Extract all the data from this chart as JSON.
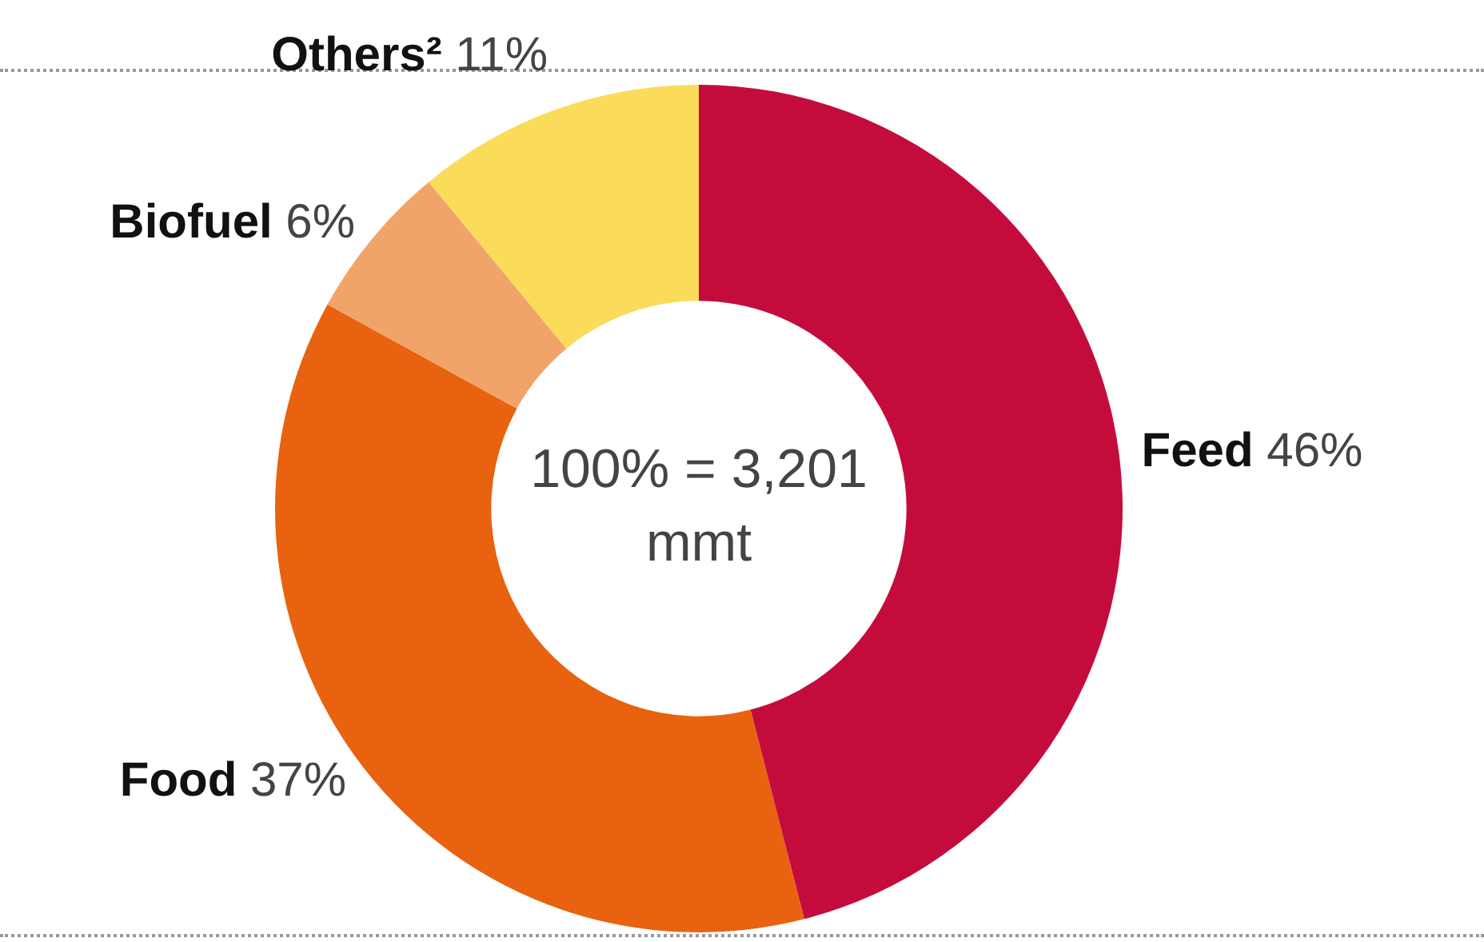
{
  "chart_data": {
    "type": "donut",
    "categories": [
      "Feed",
      "Food",
      "Biofuel",
      "Others²"
    ],
    "values": [
      46,
      37,
      6,
      11
    ],
    "colors": [
      "#c40c3c",
      "#e8620f",
      "#f0a46a",
      "#fadc5a"
    ],
    "value_labels": [
      "46%",
      "37%",
      "6%",
      "11%"
    ],
    "annotations": [
      "100% = 3,201 mmt"
    ],
    "legend": false
  }
}
